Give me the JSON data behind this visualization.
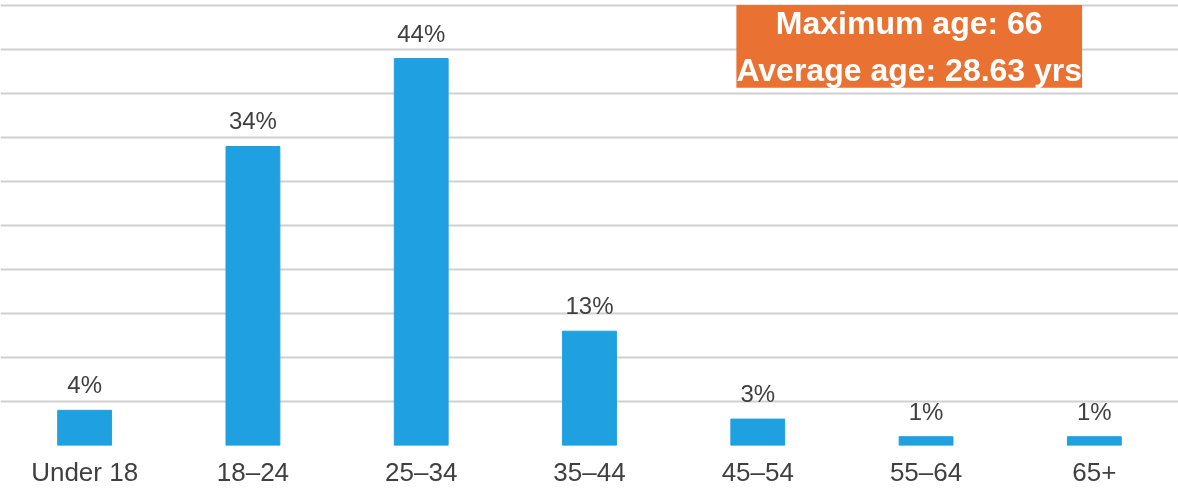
{
  "chart_data": {
    "type": "bar",
    "categories": [
      "Under 18",
      "18–24",
      "25–34",
      "35–44",
      "45–54",
      "55–64",
      "65+"
    ],
    "values": [
      4,
      34,
      44,
      13,
      3,
      1,
      1
    ],
    "color": "#1fa0e0",
    "data_labels": true,
    "value_labels": [
      "4%",
      "34%",
      "44%",
      "13%",
      "3%",
      "1%",
      "1%"
    ],
    "tick_labels": "x",
    "grid": "y",
    "annotations": [
      "Maximum age: 66\nAverage age: 28.63 yrs"
    ]
  }
}
